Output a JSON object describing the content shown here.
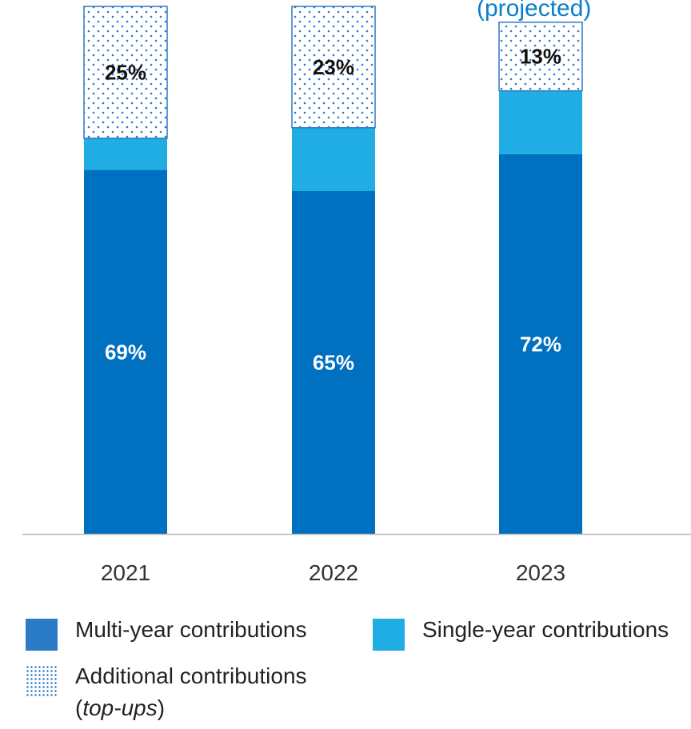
{
  "header": {
    "note": "(projected)"
  },
  "colors": {
    "multi_year": "#0070c0",
    "single_year": "#1fade3",
    "additional": "#2e78c7",
    "axis": "#bfbfbf",
    "label_dark": "#111111",
    "label_light": "#ffffff"
  },
  "chart_data": {
    "type": "bar",
    "stacked": true,
    "categories": [
      "2021",
      "2022",
      "2023"
    ],
    "series": [
      {
        "name": "Multi-year contributions",
        "values": [
          69,
          65,
          72
        ],
        "labels": [
          "69%",
          "65%",
          "72%"
        ]
      },
      {
        "name": "Single-year contributions",
        "values": [
          6,
          12,
          12
        ],
        "labels": [
          "",
          "",
          ""
        ]
      },
      {
        "name": "Additional contributions (top-ups)",
        "values": [
          25,
          23,
          13
        ],
        "labels": [
          "25%",
          "23%",
          "13%"
        ],
        "pattern": "dotted"
      }
    ],
    "ylim": [
      0,
      100
    ],
    "grid": false,
    "legend_position": "bottom"
  },
  "legend": {
    "multi_year": "Multi-year contributions",
    "single_year": "Single-year contributions",
    "additional_line1": "Additional contributions",
    "additional_paren_open": "(",
    "additional_italic": "top-ups",
    "additional_paren_close": ")"
  }
}
